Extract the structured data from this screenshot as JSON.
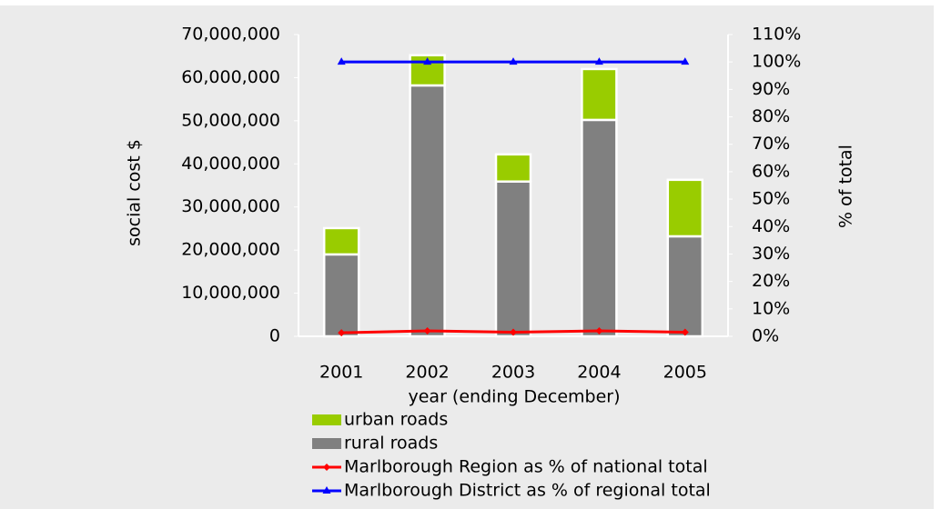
{
  "chart_data": {
    "type": "bar",
    "stacked": true,
    "xlabel": "year (ending December)",
    "ylabel": "social cost $",
    "y2label": "% of total",
    "categories": [
      "2001",
      "2002",
      "2003",
      "2004",
      "2005"
    ],
    "series": [
      {
        "name": "urban roads",
        "type": "bar",
        "color": "#99cc00",
        "values": [
          6100000,
          7000000,
          6300000,
          11800000,
          13100000
        ]
      },
      {
        "name": "rural roads",
        "type": "bar",
        "color": "#808080",
        "values": [
          19000000,
          58200000,
          35900000,
          50200000,
          23200000
        ]
      },
      {
        "name": "Marlborough Region as % of national total",
        "type": "line",
        "axis": "y2",
        "marker": "diamond",
        "color": "#ff0000",
        "values": [
          1.3,
          2,
          1.5,
          2,
          1.5
        ]
      },
      {
        "name": "Marlborough District as % of regional total",
        "type": "line",
        "axis": "y2",
        "marker": "triangle",
        "color": "#0000ff",
        "values": [
          100,
          100,
          100,
          100,
          100
        ]
      }
    ],
    "ylim": [
      0,
      70000000
    ],
    "yticks": [
      0,
      {
        "value": 10000000,
        "label": "10,000,000"
      },
      {
        "value": 20000000,
        "label": "20,000,000"
      },
      {
        "value": 30000000,
        "label": "30,000,000"
      },
      {
        "value": 40000000,
        "label": "40,000,000"
      },
      {
        "value": 50000000,
        "label": "50,000,000"
      },
      {
        "value": 60000000,
        "label": "60,000,000"
      },
      {
        "value": 70000000,
        "label": "70,000,000"
      }
    ],
    "y2lim": [
      0,
      110
    ],
    "y2ticks": [
      {
        "value": 0,
        "label": "0%"
      },
      {
        "value": 10,
        "label": "10%"
      },
      {
        "value": 20,
        "label": "20%"
      },
      {
        "value": 30,
        "label": "30%"
      },
      {
        "value": 40,
        "label": "40%"
      },
      {
        "value": 50,
        "label": "50%"
      },
      {
        "value": 60,
        "label": "60%"
      },
      {
        "value": 70,
        "label": "70%"
      },
      {
        "value": 80,
        "label": "80%"
      },
      {
        "value": 90,
        "label": "90%"
      },
      {
        "value": 100,
        "label": "100%"
      },
      {
        "value": 110,
        "label": "110%"
      }
    ],
    "grid": false
  }
}
